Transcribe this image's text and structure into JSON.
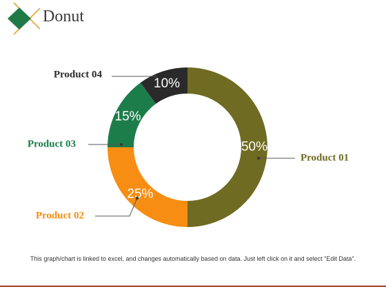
{
  "header": {
    "title": "Donut"
  },
  "colors": {
    "logo_diamond": "#1f7a48",
    "logo_line": "#e0a530",
    "rule": "#a33a2a"
  },
  "chart_data": {
    "type": "pie",
    "variant": "donut",
    "categories": [
      "Product 01",
      "Product 02",
      "Product 03",
      "Product 04"
    ],
    "values": [
      50,
      25,
      15,
      10
    ],
    "value_labels": [
      "50%",
      "25%",
      "15%",
      "10%"
    ],
    "colors": [
      "#6f6b22",
      "#f78d12",
      "#1c7d4a",
      "#2a2a2a"
    ],
    "label_colors": [
      "#6f6b22",
      "#f78d12",
      "#1c7d4a",
      "#2a2a2a"
    ],
    "start": "top, clockwise",
    "legend": "none (callout labels)"
  },
  "footer": {
    "note": "This graph/chart is linked to excel, and changes automatically based on data. Just left click on it and select \"Edit Data\"."
  }
}
